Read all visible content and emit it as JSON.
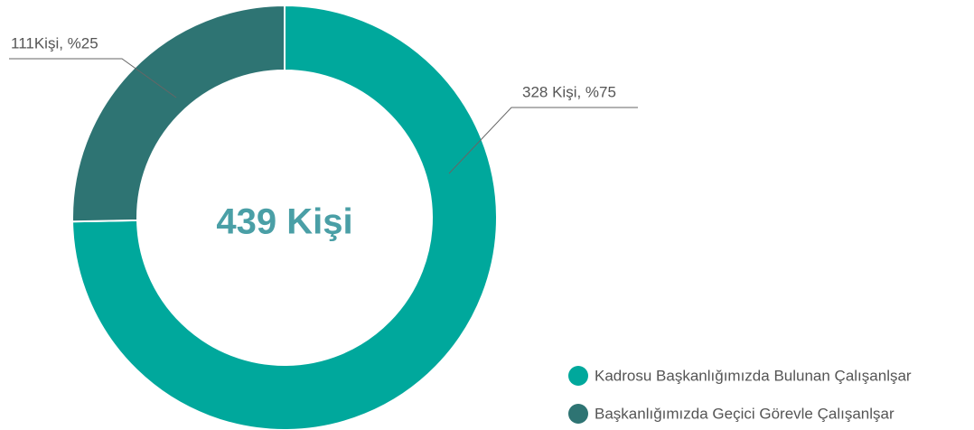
{
  "chart_data": {
    "type": "donut",
    "categories": [
      "Kadrosu Başkanlığımızda Bulunan Çalışanlşar",
      "Başkanlığımızda Geçici Görevle Çalışanlşar"
    ],
    "values": [
      328,
      111
    ],
    "value_labels": [
      "328 Kişi, %75",
      "111Kişi, %25"
    ],
    "colors": [
      "#00a89c",
      "#2e7473"
    ],
    "center_label": "439 Kişi",
    "legend": "bottom-right"
  }
}
